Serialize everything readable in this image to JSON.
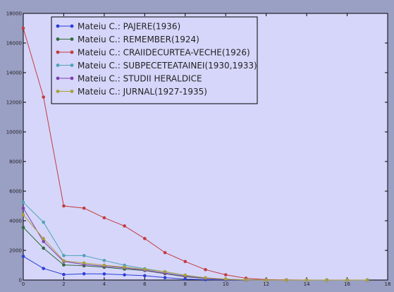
{
  "chart_data": {
    "type": "line",
    "xlim": [
      0,
      18
    ],
    "ylim": [
      0,
      18000
    ],
    "x_ticks": [
      0,
      2,
      4,
      6,
      8,
      10,
      12,
      14,
      16,
      18
    ],
    "y_ticks": [
      0,
      2000,
      4000,
      6000,
      8000,
      10000,
      12000,
      14000,
      16000,
      18000
    ],
    "grid": false,
    "legend_placement": "top-left",
    "plot_background": "#d6d6fb",
    "figure_background": "#9a9fc4",
    "series": [
      {
        "name": "Mateiu C.: PAJERE(1936)",
        "color": "#2b3ed6",
        "x": [
          0,
          1,
          2,
          3,
          4,
          5,
          6,
          7,
          8,
          9,
          10,
          11,
          12,
          13,
          14,
          15,
          16,
          17
        ],
        "y": [
          1600,
          780,
          370,
          420,
          410,
          350,
          290,
          160,
          60,
          25,
          10,
          5,
          0,
          0,
          0,
          0,
          0,
          0
        ]
      },
      {
        "name": "Mateiu C.: REMEMBER(1924)",
        "color": "#2f6b3a",
        "x": [
          0,
          1,
          2,
          3,
          4,
          5,
          6,
          7,
          8,
          9,
          10,
          11,
          12,
          13,
          14,
          15,
          16,
          17
        ],
        "y": [
          3550,
          2150,
          1020,
          960,
          860,
          740,
          640,
          430,
          220,
          100,
          40,
          10,
          0,
          0,
          0,
          0,
          0,
          0
        ]
      },
      {
        "name": "Mateiu C.: CRAIIDECURTEA-VECHE(1926)",
        "color": "#c33c3c",
        "x": [
          0,
          1,
          2,
          3,
          4,
          5,
          6,
          7,
          8,
          9,
          10,
          11,
          12,
          13,
          14,
          15,
          16,
          17
        ],
        "y": [
          17000,
          12350,
          5000,
          4850,
          4200,
          3650,
          2800,
          1850,
          1250,
          700,
          350,
          120,
          30,
          10,
          0,
          0,
          0,
          0
        ]
      },
      {
        "name": "Mateiu C.: SUBPECETEATAINEI(1930,1933)",
        "color": "#4fa3b6",
        "x": [
          0,
          1,
          2,
          3,
          4,
          5,
          6,
          7,
          8,
          9,
          10,
          11,
          12,
          13,
          14,
          15,
          16,
          17
        ],
        "y": [
          5250,
          3900,
          1650,
          1650,
          1320,
          1000,
          760,
          560,
          310,
          150,
          60,
          15,
          0,
          0,
          0,
          0,
          0,
          0
        ]
      },
      {
        "name": "Mateiu C.: STUDII HERALDICE",
        "color": "#7d3fae",
        "x": [
          0,
          1,
          2,
          3,
          4,
          5,
          6,
          7,
          8,
          9,
          10,
          11,
          12,
          13,
          14,
          15,
          16,
          17
        ],
        "y": [
          4850,
          2600,
          1250,
          1050,
          930,
          820,
          660,
          460,
          250,
          110,
          40,
          10,
          0,
          0,
          0,
          0,
          0,
          0
        ]
      },
      {
        "name": "Mateiu C.: JURNAL(1927-1935)",
        "color": "#a8a03a",
        "x": [
          0,
          1,
          2,
          3,
          4,
          5,
          6,
          7,
          8,
          9,
          10,
          11,
          12,
          13,
          14,
          15,
          16,
          17
        ],
        "y": [
          4400,
          2800,
          1300,
          1150,
          1000,
          870,
          720,
          560,
          330,
          150,
          60,
          15,
          0,
          0,
          0,
          0,
          0,
          0
        ]
      }
    ]
  }
}
